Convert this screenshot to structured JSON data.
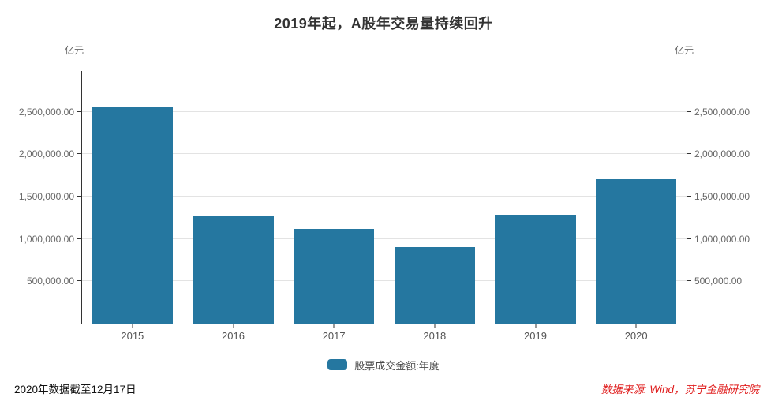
{
  "chart": {
    "title": "2019年起，A股年交易量持续回升",
    "unit_left": "亿元",
    "unit_right": "亿元",
    "legend_label": "股票成交金额:年度",
    "footnote_left": "2020年数据截至12月17日",
    "footnote_right": "数据来源: Wind，苏宁金融研究院"
  },
  "colors": {
    "bar": "#2577a0",
    "gridline": "#e3e3e3",
    "axis": "#333333",
    "tick_label": "#666666",
    "title": "#333333",
    "source_red": "#e01f1f"
  },
  "chart_data": {
    "type": "bar",
    "title": "2019年起，A股年交易量持续回升",
    "categories": [
      "2015",
      "2016",
      "2017",
      "2018",
      "2019",
      "2020"
    ],
    "series": [
      {
        "name": "股票成交金额:年度",
        "values": [
          2550000,
          1270000,
          1120000,
          900000,
          1275000,
          1700000
        ]
      }
    ],
    "xlabel": "",
    "ylabel": "亿元",
    "ylabel_right": "亿元",
    "ylim": [
      0,
      2980000
    ],
    "yticks": [
      500000,
      1000000,
      1500000,
      2000000,
      2500000
    ],
    "ytick_decimals": 2,
    "grid": true,
    "dual_axis": true,
    "legend_position": "bottom",
    "bar_color": "#2577a0",
    "bar_width_ratio": 0.8,
    "footnotes": [
      "2020年数据截至12月17日",
      "数据来源: Wind，苏宁金融研究院"
    ]
  }
}
